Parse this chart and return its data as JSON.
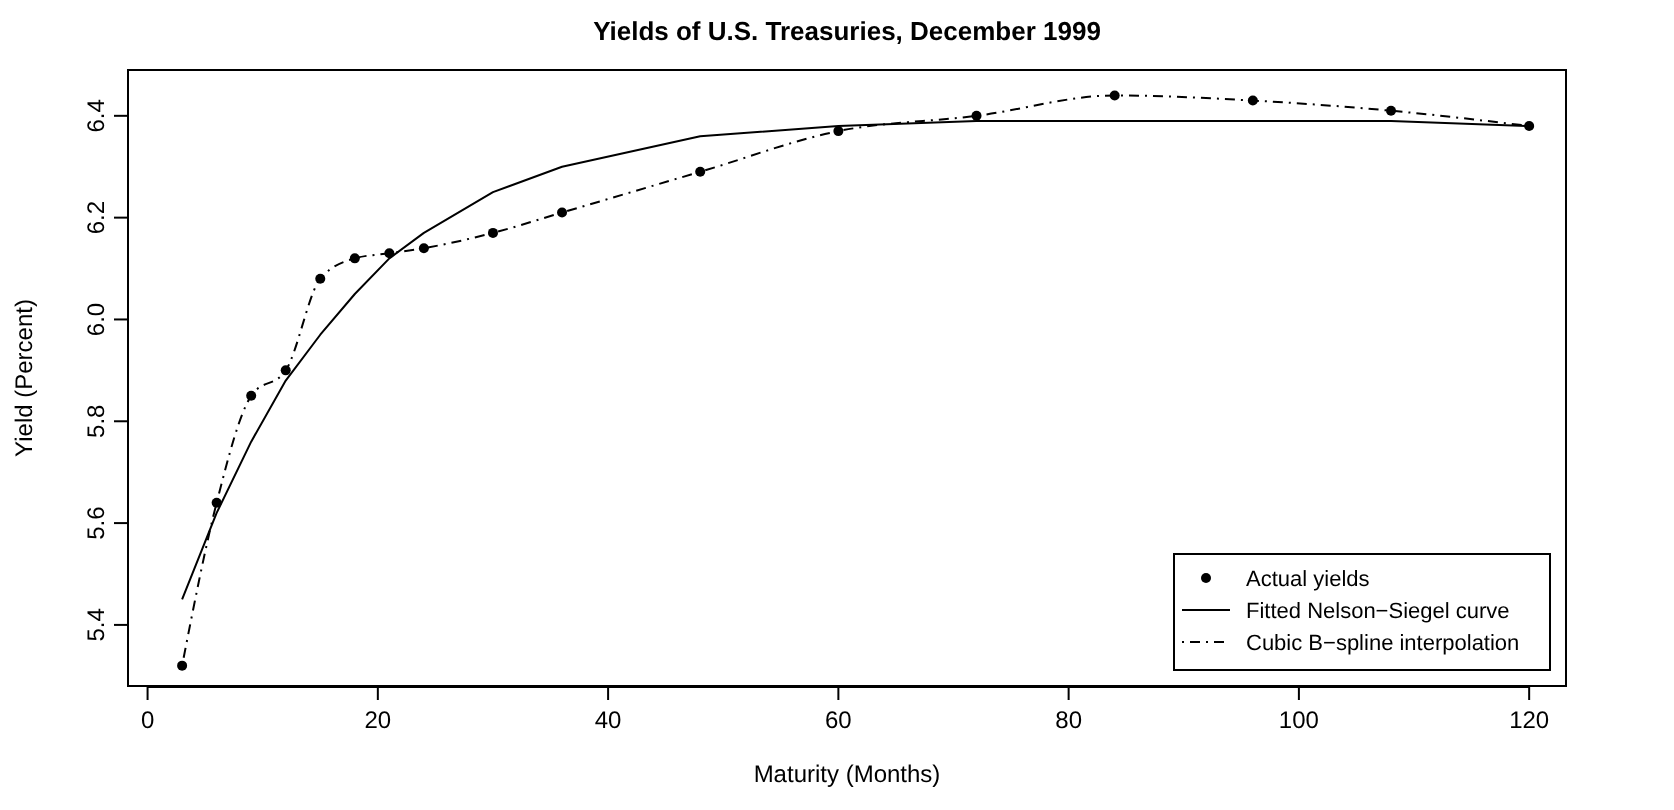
{
  "chart_data": {
    "type": "scatter",
    "title": "Yields of U.S. Treasuries, December 1999",
    "xlabel": "Maturity (Months)",
    "ylabel": "Yield (Percent)",
    "x": [
      3,
      6,
      9,
      12,
      15,
      18,
      21,
      24,
      30,
      36,
      48,
      60,
      72,
      84,
      96,
      108,
      120
    ],
    "series": [
      {
        "name": "Actual yields",
        "color": "#000000",
        "marker": "circle",
        "values": [
          5.32,
          5.64,
          5.85,
          5.9,
          6.08,
          6.12,
          6.13,
          6.14,
          6.17,
          6.21,
          6.29,
          6.37,
          6.4,
          6.44,
          6.43,
          6.41,
          6.38
        ]
      },
      {
        "name": "Fitted Nelson−Siegel curve",
        "type": "line",
        "color": "#000000",
        "marker": "none",
        "line_style": "solid",
        "values": [
          5.45,
          5.62,
          5.76,
          5.88,
          5.97,
          6.05,
          6.12,
          6.17,
          6.25,
          6.3,
          6.36,
          6.38,
          6.39,
          6.39,
          6.39,
          6.39,
          6.38
        ]
      },
      {
        "name": "Cubic B−spline interpolation",
        "type": "line",
        "color": "#000000",
        "marker": "none",
        "line_style": "dashed",
        "values": [
          5.32,
          5.64,
          5.85,
          5.9,
          6.08,
          6.12,
          6.13,
          6.14,
          6.17,
          6.21,
          6.29,
          6.37,
          6.4,
          6.44,
          6.43,
          6.41,
          6.38
        ]
      }
    ],
    "xlim": [
      -1.7,
      123.2
    ],
    "xticks": [
      0,
      20,
      40,
      60,
      80,
      100,
      120
    ],
    "ylim": [
      5.28,
      6.49
    ],
    "yticks": [
      5.4,
      5.6,
      5.8,
      {
        "value": 6,
        "label": "6.0"
      },
      6.2,
      6.4
    ],
    "grid": false,
    "legend": "bottom right"
  }
}
